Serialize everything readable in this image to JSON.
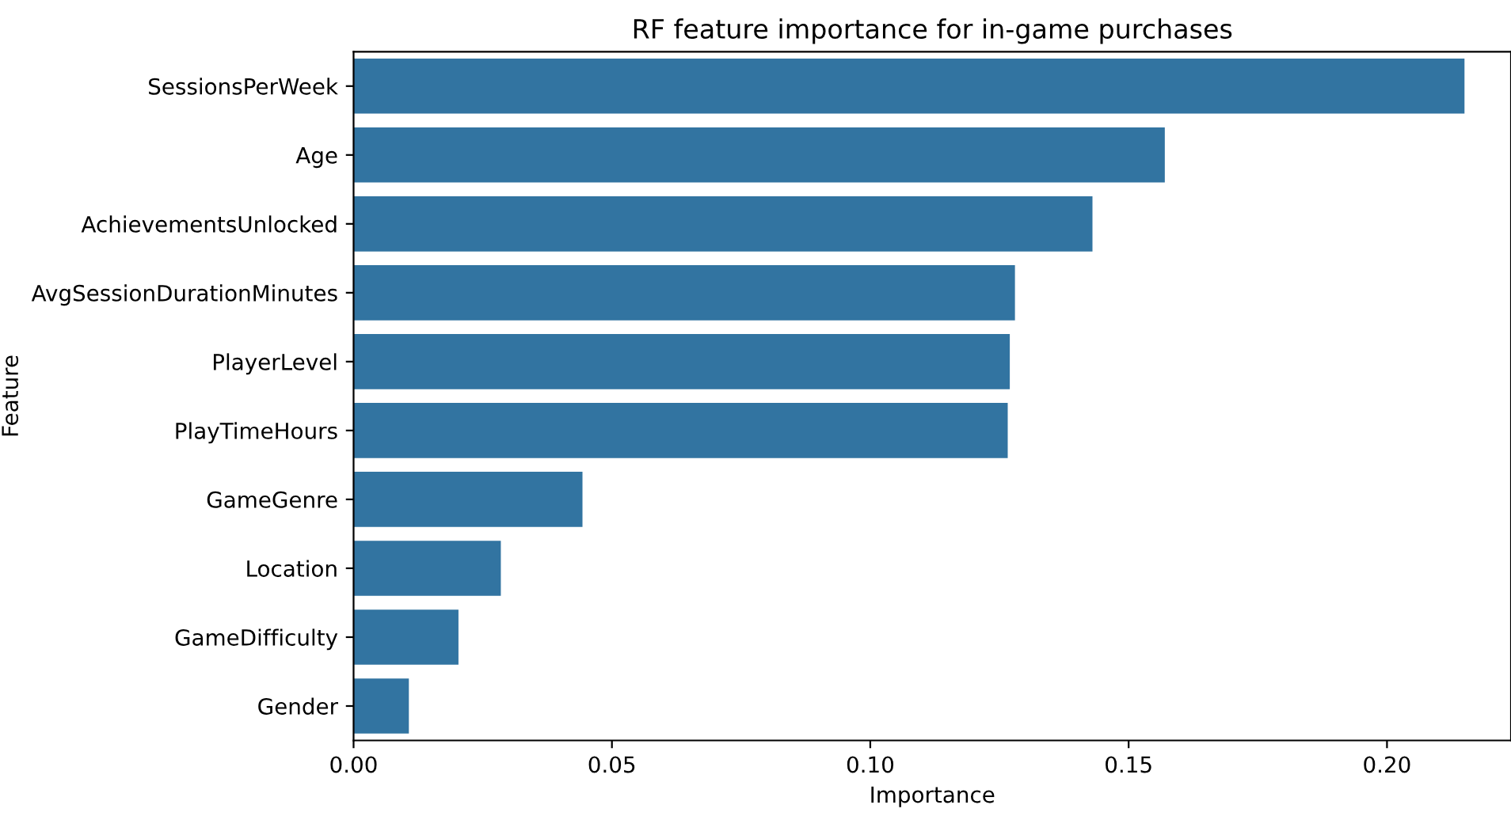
{
  "chart_data": {
    "type": "bar",
    "orientation": "horizontal",
    "title": "RF feature importance for in-game purchases",
    "xlabel": "Importance",
    "ylabel": "Feature",
    "categories": [
      "SessionsPerWeek",
      "Age",
      "AchievementsUnlocked",
      "AvgSessionDurationMinutes",
      "PlayerLevel",
      "PlayTimeHours",
      "GameGenre",
      "Location",
      "GameDifficulty",
      "Gender"
    ],
    "values": [
      0.215,
      0.157,
      0.143,
      0.128,
      0.127,
      0.1266,
      0.0443,
      0.0285,
      0.0203,
      0.0107
    ],
    "color": "#3274a1",
    "xlim": [
      0,
      0.224
    ],
    "xticks": [
      {
        "value": 0,
        "label": "0.00"
      },
      0.05,
      {
        "value": 0.1,
        "label": "0.10"
      },
      0.15,
      {
        "value": 0.2,
        "label": "0.20"
      }
    ],
    "grid": false
  }
}
